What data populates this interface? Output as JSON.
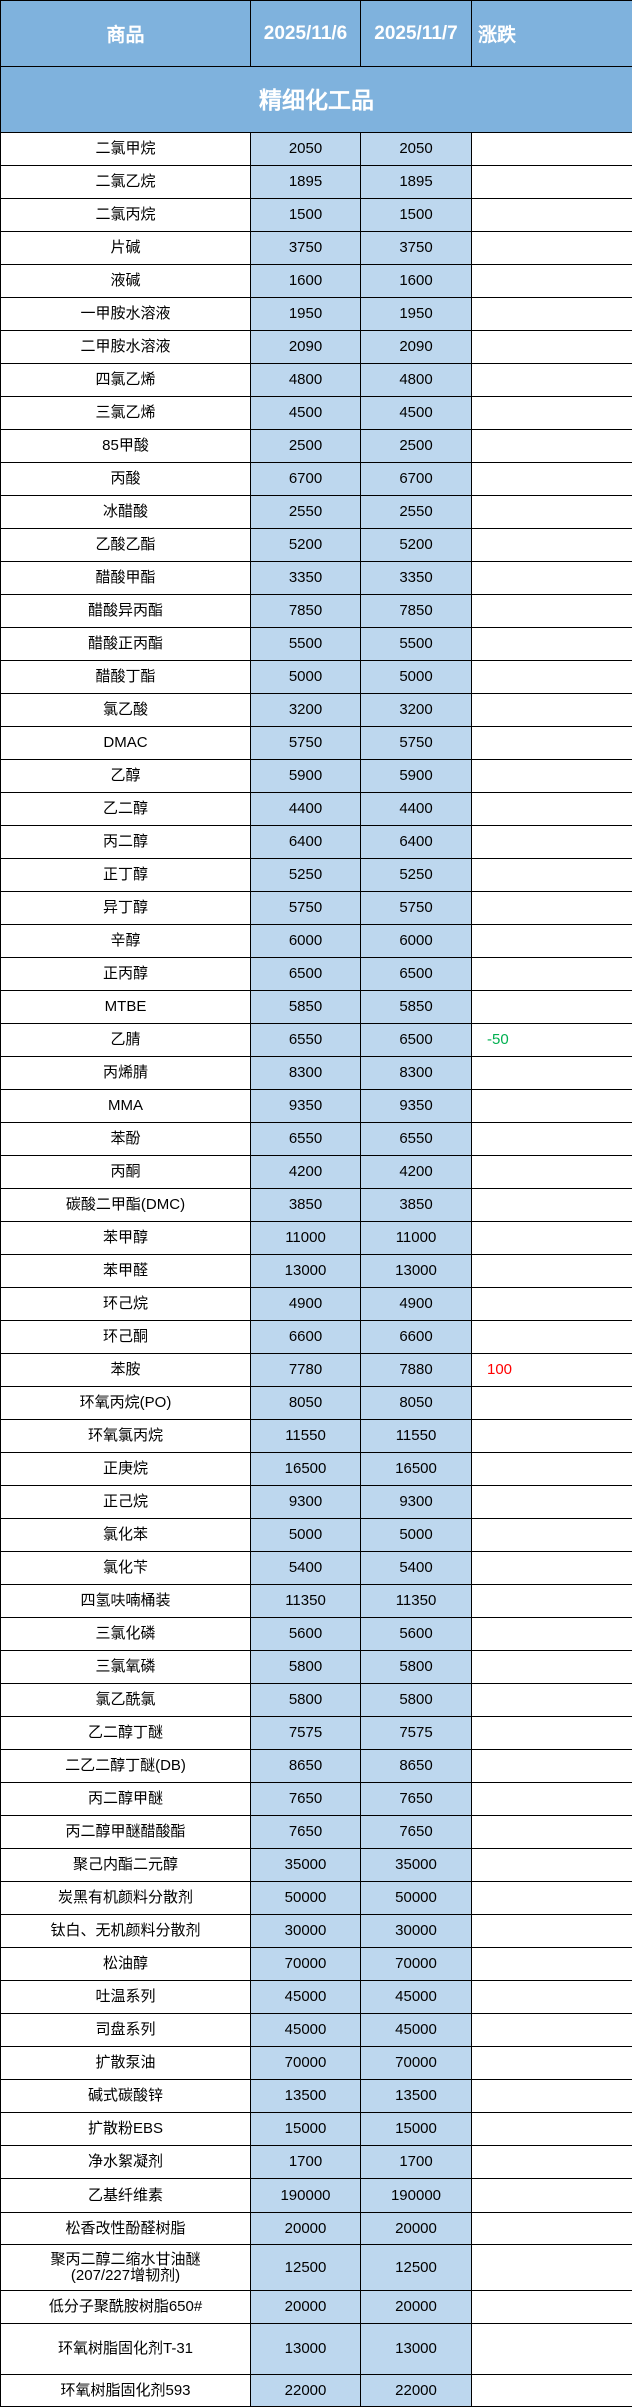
{
  "header": {
    "product": "商品",
    "date1": "2025/11/6",
    "date2": "2025/11/7",
    "change": "涨跌"
  },
  "section_title": "精细化工品",
  "colors": {
    "header_bg": "#7fb2dd",
    "value_bg": "#bdd7ee",
    "rise": "#ff0000",
    "fall": "#00b050"
  },
  "rows": [
    {
      "name": "二氯甲烷",
      "d1": "2050",
      "d2": "2050",
      "chg": ""
    },
    {
      "name": "二氯乙烷",
      "d1": "1895",
      "d2": "1895",
      "chg": ""
    },
    {
      "name": "二氯丙烷",
      "d1": "1500",
      "d2": "1500",
      "chg": ""
    },
    {
      "name": "片碱",
      "d1": "3750",
      "d2": "3750",
      "chg": ""
    },
    {
      "name": "液碱",
      "d1": "1600",
      "d2": "1600",
      "chg": ""
    },
    {
      "name": "一甲胺水溶液",
      "d1": "1950",
      "d2": "1950",
      "chg": ""
    },
    {
      "name": "二甲胺水溶液",
      "d1": "2090",
      "d2": "2090",
      "chg": ""
    },
    {
      "name": "四氯乙烯",
      "d1": "4800",
      "d2": "4800",
      "chg": ""
    },
    {
      "name": "三氯乙烯",
      "d1": "4500",
      "d2": "4500",
      "chg": ""
    },
    {
      "name": "85甲酸",
      "d1": "2500",
      "d2": "2500",
      "chg": ""
    },
    {
      "name": "丙酸",
      "d1": "6700",
      "d2": "6700",
      "chg": ""
    },
    {
      "name": "冰醋酸",
      "d1": "2550",
      "d2": "2550",
      "chg": ""
    },
    {
      "name": "乙酸乙酯",
      "d1": "5200",
      "d2": "5200",
      "chg": ""
    },
    {
      "name": "醋酸甲酯",
      "d1": "3350",
      "d2": "3350",
      "chg": ""
    },
    {
      "name": "醋酸异丙酯",
      "d1": "7850",
      "d2": "7850",
      "chg": ""
    },
    {
      "name": "醋酸正丙酯",
      "d1": "5500",
      "d2": "5500",
      "chg": ""
    },
    {
      "name": "醋酸丁酯",
      "d1": "5000",
      "d2": "5000",
      "chg": ""
    },
    {
      "name": "氯乙酸",
      "d1": "3200",
      "d2": "3200",
      "chg": ""
    },
    {
      "name": "DMAC",
      "d1": "5750",
      "d2": "5750",
      "chg": ""
    },
    {
      "name": "乙醇",
      "d1": "5900",
      "d2": "5900",
      "chg": ""
    },
    {
      "name": "乙二醇",
      "d1": "4400",
      "d2": "4400",
      "chg": ""
    },
    {
      "name": "丙二醇",
      "d1": "6400",
      "d2": "6400",
      "chg": ""
    },
    {
      "name": "正丁醇",
      "d1": "5250",
      "d2": "5250",
      "chg": ""
    },
    {
      "name": "异丁醇",
      "d1": "5750",
      "d2": "5750",
      "chg": ""
    },
    {
      "name": "辛醇",
      "d1": "6000",
      "d2": "6000",
      "chg": ""
    },
    {
      "name": "正丙醇",
      "d1": "6500",
      "d2": "6500",
      "chg": ""
    },
    {
      "name": "MTBE",
      "d1": "5850",
      "d2": "5850",
      "chg": ""
    },
    {
      "name": "乙腈",
      "d1": "6550",
      "d2": "6500",
      "chg": "-50"
    },
    {
      "name": "丙烯腈",
      "d1": "8300",
      "d2": "8300",
      "chg": ""
    },
    {
      "name": "MMA",
      "d1": "9350",
      "d2": "9350",
      "chg": ""
    },
    {
      "name": "苯酚",
      "d1": "6550",
      "d2": "6550",
      "chg": ""
    },
    {
      "name": "丙酮",
      "d1": "4200",
      "d2": "4200",
      "chg": ""
    },
    {
      "name": "碳酸二甲酯(DMC)",
      "d1": "3850",
      "d2": "3850",
      "chg": ""
    },
    {
      "name": "苯甲醇",
      "d1": "11000",
      "d2": "11000",
      "chg": ""
    },
    {
      "name": "苯甲醛",
      "d1": "13000",
      "d2": "13000",
      "chg": ""
    },
    {
      "name": "环己烷",
      "d1": "4900",
      "d2": "4900",
      "chg": ""
    },
    {
      "name": "环己酮",
      "d1": "6600",
      "d2": "6600",
      "chg": ""
    },
    {
      "name": "苯胺",
      "d1": "7780",
      "d2": "7880",
      "chg": "100"
    },
    {
      "name": "环氧丙烷(PO)",
      "d1": "8050",
      "d2": "8050",
      "chg": ""
    },
    {
      "name": "环氧氯丙烷",
      "d1": "11550",
      "d2": "11550",
      "chg": ""
    },
    {
      "name": "正庚烷",
      "d1": "16500",
      "d2": "16500",
      "chg": ""
    },
    {
      "name": "正己烷",
      "d1": "9300",
      "d2": "9300",
      "chg": ""
    },
    {
      "name": "氯化苯",
      "d1": "5000",
      "d2": "5000",
      "chg": ""
    },
    {
      "name": "氯化苄",
      "d1": "5400",
      "d2": "5400",
      "chg": ""
    },
    {
      "name": "四氢呋喃桶装",
      "d1": "11350",
      "d2": "11350",
      "chg": ""
    },
    {
      "name": "三氯化磷",
      "d1": "5600",
      "d2": "5600",
      "chg": ""
    },
    {
      "name": "三氯氧磷",
      "d1": "5800",
      "d2": "5800",
      "chg": ""
    },
    {
      "name": "氯乙酰氯",
      "d1": "5800",
      "d2": "5800",
      "chg": ""
    },
    {
      "name": "乙二醇丁醚",
      "d1": "7575",
      "d2": "7575",
      "chg": ""
    },
    {
      "name": "二乙二醇丁醚(DB)",
      "d1": "8650",
      "d2": "8650",
      "chg": ""
    },
    {
      "name": "丙二醇甲醚",
      "d1": "7650",
      "d2": "7650",
      "chg": ""
    },
    {
      "name": "丙二醇甲醚醋酸酯",
      "d1": "7650",
      "d2": "7650",
      "chg": ""
    },
    {
      "name": "聚己内酯二元醇",
      "d1": "35000",
      "d2": "35000",
      "chg": ""
    },
    {
      "name": "炭黑有机颜料分散剂",
      "d1": "50000",
      "d2": "50000",
      "chg": ""
    },
    {
      "name": "钛白、无机颜料分散剂",
      "d1": "30000",
      "d2": "30000",
      "chg": ""
    },
    {
      "name": "松油醇",
      "d1": "70000",
      "d2": "70000",
      "chg": ""
    },
    {
      "name": "吐温系列",
      "d1": "45000",
      "d2": "45000",
      "chg": ""
    },
    {
      "name": "司盘系列",
      "d1": "45000",
      "d2": "45000",
      "chg": ""
    },
    {
      "name": "扩散泵油",
      "d1": "70000",
      "d2": "70000",
      "chg": ""
    },
    {
      "name": "碱式碳酸锌",
      "d1": "13500",
      "d2": "13500",
      "chg": ""
    },
    {
      "name": "扩散粉EBS",
      "d1": "15000",
      "d2": "15000",
      "chg": ""
    },
    {
      "name": "净水絮凝剂",
      "d1": "1700",
      "d2": "1700",
      "chg": ""
    },
    {
      "name": "乙基纤维素",
      "d1": "190000",
      "d2": "190000",
      "chg": ""
    },
    {
      "name": "松香改性酚醛树脂",
      "d1": "20000",
      "d2": "20000",
      "chg": ""
    },
    {
      "name": "聚丙二醇二缩水甘油醚\n(207/227增韧剂)",
      "d1": "12500",
      "d2": "12500",
      "chg": ""
    },
    {
      "name": "低分子聚酰胺树脂650#",
      "d1": "20000",
      "d2": "20000",
      "chg": ""
    },
    {
      "name": "环氧树脂固化剂T-31",
      "d1": "13000",
      "d2": "13000",
      "chg": ""
    },
    {
      "name": "环氧树脂固化剂593",
      "d1": "22000",
      "d2": "22000",
      "chg": ""
    }
  ]
}
